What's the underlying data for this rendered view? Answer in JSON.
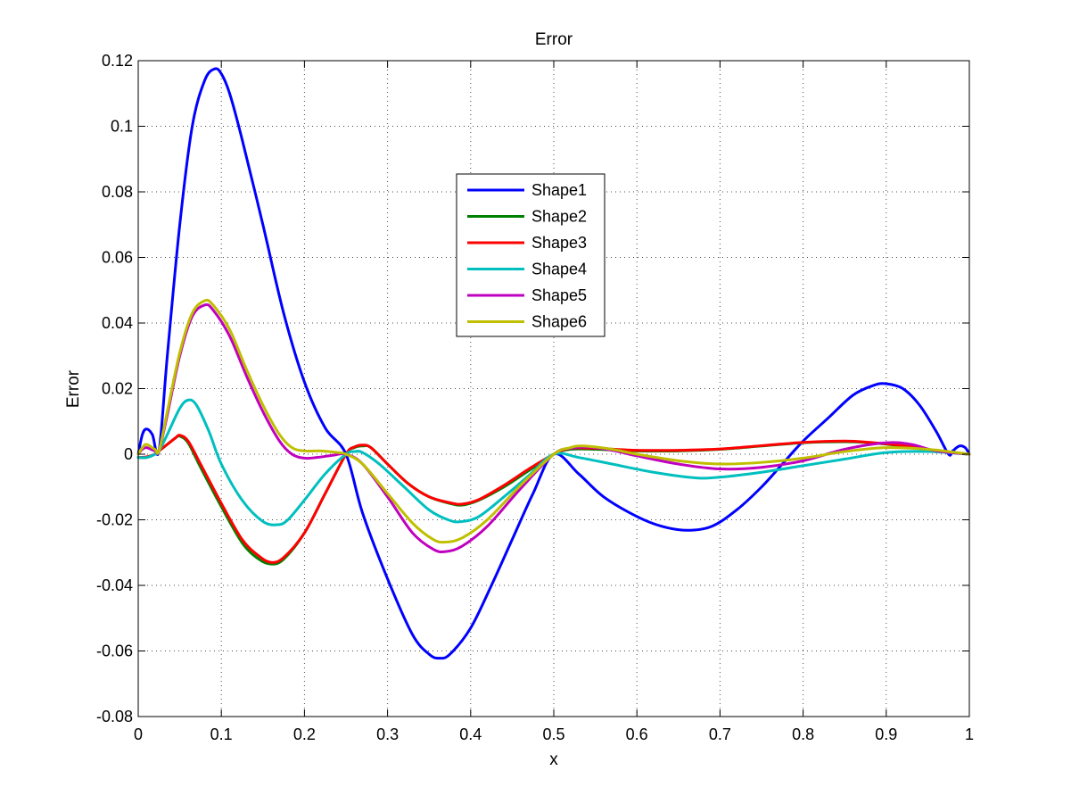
{
  "chart_data": {
    "type": "line",
    "title": "Error",
    "xlabel": "x",
    "ylabel": "Error",
    "xlim": [
      0,
      1
    ],
    "ylim": [
      -0.08,
      0.12
    ],
    "xticks": [
      0,
      0.1,
      0.2,
      0.3,
      0.4,
      0.5,
      0.6,
      0.7,
      0.8,
      0.9,
      1
    ],
    "xtick_labels": [
      "0",
      "0.1",
      "0.2",
      "0.3",
      "0.4",
      "0.5",
      "0.6",
      "0.7",
      "0.8",
      "0.9",
      "1"
    ],
    "yticks": [
      -0.08,
      -0.06,
      -0.04,
      -0.02,
      0,
      0.02,
      0.04,
      0.06,
      0.08,
      0.1,
      0.12
    ],
    "ytick_labels": [
      "-0.08",
      "-0.06",
      "-0.04",
      "-0.02",
      "0",
      "0.02",
      "0.04",
      "0.06",
      "0.08",
      "0.1",
      "0.12"
    ],
    "grid": true,
    "legend_position": "upper-center",
    "series": [
      {
        "name": "Shape1",
        "color": "#0000ff",
        "points": [
          [
            0,
            0
          ],
          [
            0.005,
            0.006
          ],
          [
            0.01,
            0.0077
          ],
          [
            0.017,
            0.006
          ],
          [
            0.025,
            0.001
          ],
          [
            0.035,
            0.03
          ],
          [
            0.05,
            0.07
          ],
          [
            0.065,
            0.1
          ],
          [
            0.08,
            0.114
          ],
          [
            0.092,
            0.1175
          ],
          [
            0.1,
            0.116
          ],
          [
            0.11,
            0.11
          ],
          [
            0.125,
            0.096
          ],
          [
            0.15,
            0.07
          ],
          [
            0.175,
            0.043
          ],
          [
            0.2,
            0.022
          ],
          [
            0.225,
            0.008
          ],
          [
            0.25,
            0
          ],
          [
            0.27,
            -0.018
          ],
          [
            0.3,
            -0.038
          ],
          [
            0.33,
            -0.055
          ],
          [
            0.35,
            -0.061
          ],
          [
            0.362,
            -0.0622
          ],
          [
            0.375,
            -0.061
          ],
          [
            0.4,
            -0.053
          ],
          [
            0.425,
            -0.04
          ],
          [
            0.45,
            -0.026
          ],
          [
            0.475,
            -0.012
          ],
          [
            0.5,
            0
          ],
          [
            0.53,
            -0.006
          ],
          [
            0.56,
            -0.013
          ],
          [
            0.6,
            -0.019
          ],
          [
            0.63,
            -0.022
          ],
          [
            0.66,
            -0.0232
          ],
          [
            0.69,
            -0.022
          ],
          [
            0.72,
            -0.017
          ],
          [
            0.75,
            -0.01
          ],
          [
            0.775,
            -0.003
          ],
          [
            0.8,
            0.004
          ],
          [
            0.83,
            0.011
          ],
          [
            0.86,
            0.018
          ],
          [
            0.885,
            0.021
          ],
          [
            0.9,
            0.0215
          ],
          [
            0.92,
            0.02
          ],
          [
            0.94,
            0.015
          ],
          [
            0.96,
            0.007
          ],
          [
            0.975,
            0
          ],
          [
            0.98,
            0.001
          ],
          [
            0.988,
            0.0025
          ],
          [
            0.995,
            0.002
          ],
          [
            1,
            0
          ]
        ]
      },
      {
        "name": "Shape2",
        "color": "#008000",
        "points": [
          [
            0,
            -0.001
          ],
          [
            0.01,
            -0.001
          ],
          [
            0.02,
            0
          ],
          [
            0.025,
            0.001
          ],
          [
            0.035,
            0.003
          ],
          [
            0.045,
            0.005
          ],
          [
            0.05,
            0.0055
          ],
          [
            0.06,
            0.0035
          ],
          [
            0.075,
            -0.004
          ],
          [
            0.1,
            -0.016
          ],
          [
            0.125,
            -0.027
          ],
          [
            0.145,
            -0.032
          ],
          [
            0.16,
            -0.0335
          ],
          [
            0.175,
            -0.032
          ],
          [
            0.2,
            -0.024
          ],
          [
            0.225,
            -0.012
          ],
          [
            0.25,
            0
          ],
          [
            0.26,
            0.002
          ],
          [
            0.27,
            0.0025
          ],
          [
            0.28,
            0.002
          ],
          [
            0.3,
            -0.003
          ],
          [
            0.325,
            -0.009
          ],
          [
            0.35,
            -0.013
          ],
          [
            0.375,
            -0.015
          ],
          [
            0.39,
            -0.0155
          ],
          [
            0.41,
            -0.014
          ],
          [
            0.44,
            -0.01
          ],
          [
            0.47,
            -0.005
          ],
          [
            0.5,
            0
          ],
          [
            0.52,
            0.0015
          ],
          [
            0.55,
            0.0015
          ],
          [
            0.6,
            0.001
          ],
          [
            0.65,
            0.001
          ],
          [
            0.7,
            0.0015
          ],
          [
            0.75,
            0.0025
          ],
          [
            0.8,
            0.0035
          ],
          [
            0.85,
            0.0038
          ],
          [
            0.88,
            0.0035
          ],
          [
            0.92,
            0.0025
          ],
          [
            0.96,
            0.001
          ],
          [
            1,
            0
          ]
        ]
      },
      {
        "name": "Shape3",
        "color": "#ff0000",
        "points": [
          [
            0,
            -0.001
          ],
          [
            0.01,
            -0.0008
          ],
          [
            0.02,
            0
          ],
          [
            0.025,
            0.001
          ],
          [
            0.035,
            0.003
          ],
          [
            0.045,
            0.005
          ],
          [
            0.05,
            0.0058
          ],
          [
            0.06,
            0.004
          ],
          [
            0.075,
            -0.003
          ],
          [
            0.1,
            -0.015
          ],
          [
            0.125,
            -0.026
          ],
          [
            0.145,
            -0.031
          ],
          [
            0.16,
            -0.033
          ],
          [
            0.175,
            -0.0315
          ],
          [
            0.2,
            -0.024
          ],
          [
            0.225,
            -0.012
          ],
          [
            0.25,
            0
          ],
          [
            0.26,
            0.0022
          ],
          [
            0.27,
            0.0028
          ],
          [
            0.28,
            0.002
          ],
          [
            0.3,
            -0.003
          ],
          [
            0.325,
            -0.009
          ],
          [
            0.35,
            -0.013
          ],
          [
            0.375,
            -0.0148
          ],
          [
            0.39,
            -0.0152
          ],
          [
            0.41,
            -0.0138
          ],
          [
            0.44,
            -0.0095
          ],
          [
            0.47,
            -0.0045
          ],
          [
            0.5,
            0
          ],
          [
            0.52,
            0.0018
          ],
          [
            0.55,
            0.0018
          ],
          [
            0.6,
            0.0012
          ],
          [
            0.65,
            0.0012
          ],
          [
            0.7,
            0.0016
          ],
          [
            0.75,
            0.0026
          ],
          [
            0.8,
            0.0036
          ],
          [
            0.85,
            0.004
          ],
          [
            0.88,
            0.0036
          ],
          [
            0.92,
            0.0026
          ],
          [
            0.96,
            0.0011
          ],
          [
            1,
            0
          ]
        ]
      },
      {
        "name": "Shape4",
        "color": "#00bfbf",
        "points": [
          [
            0,
            -0.001
          ],
          [
            0.01,
            -0.001
          ],
          [
            0.02,
            0
          ],
          [
            0.025,
            0.001
          ],
          [
            0.035,
            0.006
          ],
          [
            0.05,
            0.014
          ],
          [
            0.06,
            0.0165
          ],
          [
            0.07,
            0.015
          ],
          [
            0.085,
            0.007
          ],
          [
            0.1,
            -0.003
          ],
          [
            0.125,
            -0.014
          ],
          [
            0.15,
            -0.0205
          ],
          [
            0.168,
            -0.0215
          ],
          [
            0.18,
            -0.02
          ],
          [
            0.2,
            -0.014
          ],
          [
            0.225,
            -0.006
          ],
          [
            0.25,
            0
          ],
          [
            0.26,
            0.0008
          ],
          [
            0.27,
            0.0005
          ],
          [
            0.29,
            -0.003
          ],
          [
            0.32,
            -0.01
          ],
          [
            0.35,
            -0.017
          ],
          [
            0.375,
            -0.0202
          ],
          [
            0.39,
            -0.0205
          ],
          [
            0.41,
            -0.019
          ],
          [
            0.44,
            -0.013
          ],
          [
            0.47,
            -0.0065
          ],
          [
            0.5,
            0
          ],
          [
            0.53,
            -0.001
          ],
          [
            0.57,
            -0.003
          ],
          [
            0.62,
            -0.0055
          ],
          [
            0.67,
            -0.0072
          ],
          [
            0.7,
            -0.007
          ],
          [
            0.75,
            -0.0055
          ],
          [
            0.8,
            -0.0035
          ],
          [
            0.85,
            -0.0015
          ],
          [
            0.9,
            0.0005
          ],
          [
            0.95,
            0.0008
          ],
          [
            1,
            0
          ]
        ]
      },
      {
        "name": "Shape5",
        "color": "#bf00bf",
        "points": [
          [
            0,
            0
          ],
          [
            0.005,
            0.0015
          ],
          [
            0.01,
            0.002
          ],
          [
            0.02,
            0.001
          ],
          [
            0.025,
            0.001
          ],
          [
            0.035,
            0.012
          ],
          [
            0.05,
            0.03
          ],
          [
            0.065,
            0.042
          ],
          [
            0.08,
            0.0455
          ],
          [
            0.09,
            0.044
          ],
          [
            0.11,
            0.036
          ],
          [
            0.13,
            0.024
          ],
          [
            0.15,
            0.013
          ],
          [
            0.17,
            0.004
          ],
          [
            0.185,
            0
          ],
          [
            0.2,
            -0.0012
          ],
          [
            0.215,
            -0.001
          ],
          [
            0.235,
            -0.0003
          ],
          [
            0.25,
            0
          ],
          [
            0.27,
            -0.003
          ],
          [
            0.3,
            -0.013
          ],
          [
            0.33,
            -0.024
          ],
          [
            0.355,
            -0.029
          ],
          [
            0.37,
            -0.0297
          ],
          [
            0.39,
            -0.028
          ],
          [
            0.42,
            -0.022
          ],
          [
            0.46,
            -0.0105
          ],
          [
            0.5,
            0
          ],
          [
            0.52,
            0.0018
          ],
          [
            0.54,
            0.0022
          ],
          [
            0.57,
            0.0012
          ],
          [
            0.6,
            -0.0005
          ],
          [
            0.65,
            -0.003
          ],
          [
            0.7,
            -0.0045
          ],
          [
            0.75,
            -0.004
          ],
          [
            0.8,
            -0.002
          ],
          [
            0.85,
            0.0015
          ],
          [
            0.9,
            0.0035
          ],
          [
            0.93,
            0.003
          ],
          [
            0.96,
            0.001
          ],
          [
            1,
            0
          ]
        ]
      },
      {
        "name": "Shape6",
        "color": "#bfbf00",
        "points": [
          [
            0,
            0
          ],
          [
            0.005,
            0.002
          ],
          [
            0.01,
            0.003
          ],
          [
            0.02,
            0.0015
          ],
          [
            0.025,
            0.001
          ],
          [
            0.035,
            0.013
          ],
          [
            0.05,
            0.031
          ],
          [
            0.065,
            0.043
          ],
          [
            0.08,
            0.0468
          ],
          [
            0.09,
            0.0455
          ],
          [
            0.11,
            0.038
          ],
          [
            0.13,
            0.026
          ],
          [
            0.15,
            0.015
          ],
          [
            0.17,
            0.006
          ],
          [
            0.185,
            0.002
          ],
          [
            0.2,
            0.001
          ],
          [
            0.22,
            0.001
          ],
          [
            0.24,
            0.0005
          ],
          [
            0.25,
            0
          ],
          [
            0.27,
            -0.003
          ],
          [
            0.3,
            -0.012
          ],
          [
            0.33,
            -0.021
          ],
          [
            0.355,
            -0.026
          ],
          [
            0.37,
            -0.0268
          ],
          [
            0.39,
            -0.0255
          ],
          [
            0.42,
            -0.02
          ],
          [
            0.46,
            -0.0095
          ],
          [
            0.5,
            0
          ],
          [
            0.52,
            0.002
          ],
          [
            0.535,
            0.0025
          ],
          [
            0.57,
            0.0015
          ],
          [
            0.6,
            0
          ],
          [
            0.65,
            -0.002
          ],
          [
            0.7,
            -0.003
          ],
          [
            0.75,
            -0.0025
          ],
          [
            0.8,
            -0.0012
          ],
          [
            0.85,
            0.0008
          ],
          [
            0.9,
            0.002
          ],
          [
            0.95,
            0.0015
          ],
          [
            1,
            0
          ]
        ]
      }
    ]
  }
}
